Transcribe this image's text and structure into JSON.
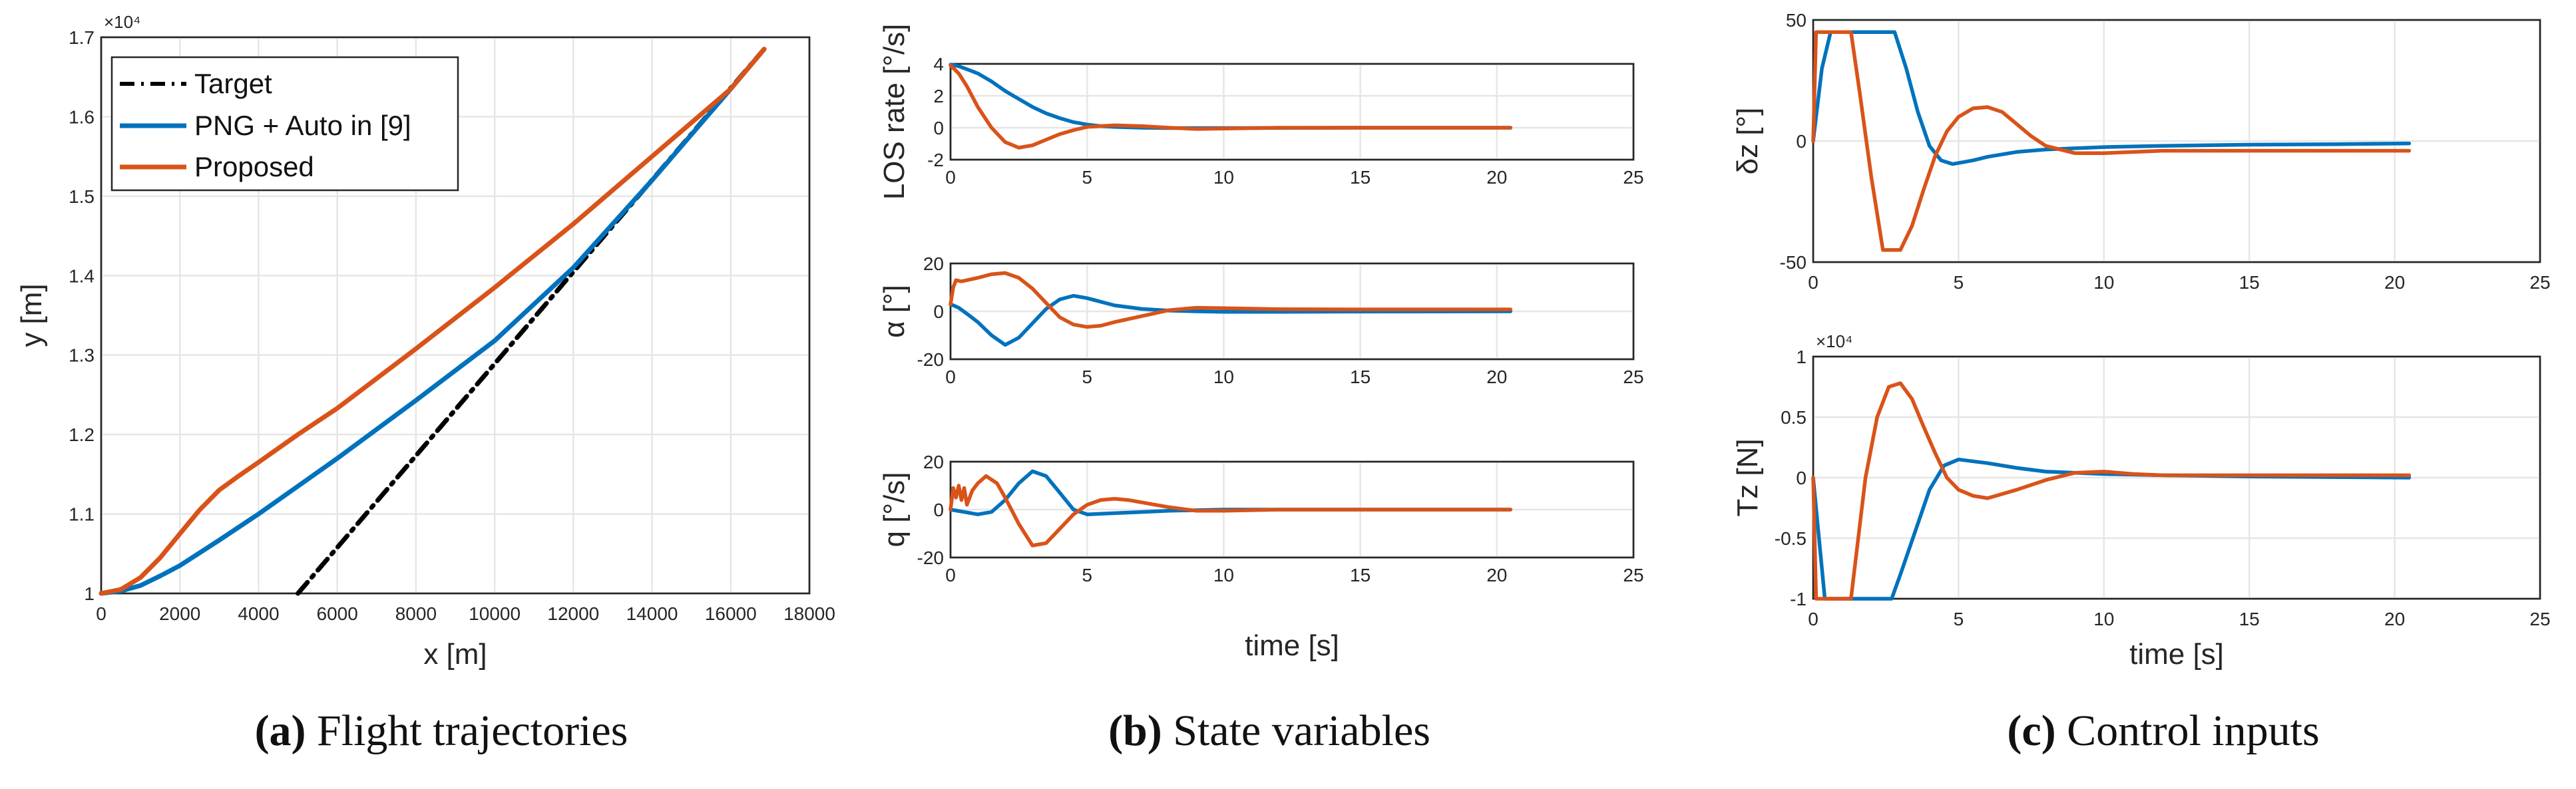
{
  "colors": {
    "blue": "#0072bd",
    "orange": "#d95319",
    "black": "#000000"
  },
  "captions": {
    "a": {
      "letter": "(a)",
      "text": " Flight trajectories"
    },
    "b": {
      "letter": "(b)",
      "text": " State variables"
    },
    "c": {
      "letter": "(c)",
      "text": " Control inputs"
    }
  },
  "chart_data": [
    {
      "id": "traj",
      "type": "line",
      "xlabel": "x [m]",
      "ylabel": "y [m]",
      "exponent": "×10⁴",
      "xlim": [
        0,
        18000
      ],
      "ylim": [
        1.0,
        1.7
      ],
      "xticks": [
        0,
        2000,
        4000,
        6000,
        8000,
        10000,
        12000,
        14000,
        16000,
        18000
      ],
      "yticks": [
        1.0,
        1.1,
        1.2,
        1.3,
        1.4,
        1.5,
        1.6,
        1.7
      ],
      "ytick_labels": [
        "1",
        "1.1",
        "1.2",
        "1.3",
        "1.4",
        "1.5",
        "1.6",
        "1.7"
      ],
      "legend": [
        "Target",
        "PNG + Auto in [9]",
        "Proposed"
      ],
      "series": [
        {
          "name": "Target",
          "color": "black",
          "style": "dashdot",
          "x": [
            5000,
            16850
          ],
          "y": [
            1.0,
            1.685
          ]
        },
        {
          "name": "PNG + Auto in [9]",
          "color": "blue",
          "x": [
            0,
            500,
            1000,
            1500,
            2000,
            3000,
            4000,
            5000,
            6000,
            8000,
            10000,
            12000,
            14000,
            16000,
            16850
          ],
          "y": [
            1.0,
            1.003,
            1.01,
            1.022,
            1.035,
            1.067,
            1.1,
            1.135,
            1.17,
            1.243,
            1.318,
            1.41,
            1.52,
            1.635,
            1.685
          ]
        },
        {
          "name": "Proposed",
          "color": "orange",
          "x": [
            0,
            500,
            1000,
            1500,
            2000,
            2500,
            3000,
            3500,
            4000,
            5000,
            6000,
            8000,
            10000,
            12000,
            14000,
            16000,
            16850
          ],
          "y": [
            1.0,
            1.005,
            1.02,
            1.045,
            1.075,
            1.105,
            1.13,
            1.148,
            1.165,
            1.2,
            1.233,
            1.308,
            1.385,
            1.465,
            1.55,
            1.635,
            1.685
          ]
        }
      ]
    },
    {
      "id": "los",
      "type": "line",
      "xlabel": "",
      "ylabel": "LOS rate [°/s]",
      "xlim": [
        0,
        25
      ],
      "ylim": [
        -2,
        4
      ],
      "xticks": [
        0,
        5,
        10,
        15,
        20,
        25
      ],
      "yticks": [
        -2,
        0,
        2,
        4
      ],
      "series": [
        {
          "name": "PNG + Auto in [9]",
          "color": "blue",
          "x": [
            0,
            0.3,
            0.7,
            1,
            1.5,
            2,
            2.5,
            3,
            3.5,
            4,
            4.5,
            5,
            5.5,
            6,
            7,
            8,
            10,
            15,
            20.5
          ],
          "y": [
            3.95,
            3.85,
            3.6,
            3.4,
            2.9,
            2.3,
            1.8,
            1.3,
            0.9,
            0.6,
            0.35,
            0.2,
            0.1,
            0.05,
            0.0,
            -0.02,
            -0.02,
            0,
            0
          ]
        },
        {
          "name": "Proposed",
          "color": "orange",
          "x": [
            0,
            0.3,
            0.6,
            1,
            1.5,
            2,
            2.5,
            3,
            3.5,
            4,
            4.5,
            5,
            6,
            7,
            8,
            9,
            10,
            12,
            15,
            20.5
          ],
          "y": [
            3.9,
            3.4,
            2.6,
            1.3,
            0.0,
            -0.9,
            -1.25,
            -1.1,
            -0.75,
            -0.4,
            -0.15,
            0.05,
            0.15,
            0.1,
            0.0,
            -0.08,
            -0.05,
            0,
            0,
            0
          ]
        }
      ]
    },
    {
      "id": "alpha",
      "type": "line",
      "xlabel": "",
      "ylabel": "α [°]",
      "xlim": [
        0,
        25
      ],
      "ylim": [
        -20,
        20
      ],
      "xticks": [
        0,
        5,
        10,
        15,
        20,
        25
      ],
      "yticks": [
        -20,
        0,
        20
      ],
      "series": [
        {
          "name": "PNG + Auto in [9]",
          "color": "blue",
          "x": [
            0,
            0.3,
            0.6,
            1,
            1.5,
            2,
            2.5,
            3,
            3.5,
            4,
            4.5,
            5,
            5.5,
            6,
            7,
            8,
            9,
            10,
            12,
            15,
            20.5
          ],
          "y": [
            3,
            1.5,
            -1,
            -4.5,
            -10,
            -14,
            -11,
            -5,
            1,
            5,
            6.5,
            5.5,
            4,
            2.5,
            1,
            0.3,
            0,
            -0.2,
            -0.2,
            -0.1,
            0
          ]
        },
        {
          "name": "Proposed",
          "color": "orange",
          "x": [
            0,
            0.1,
            0.2,
            0.4,
            0.6,
            1,
            1.5,
            2,
            2.5,
            3,
            3.5,
            4,
            4.5,
            5,
            5.5,
            6,
            7,
            8,
            9,
            10,
            12,
            15,
            20.5
          ],
          "y": [
            3,
            10,
            13,
            12.5,
            13,
            14,
            15.5,
            16,
            14,
            9.5,
            3.5,
            -2.5,
            -5.5,
            -6.5,
            -6,
            -4.5,
            -2,
            0.5,
            1.5,
            1.3,
            0.9,
            0.8,
            0.8
          ]
        }
      ]
    },
    {
      "id": "q",
      "type": "line",
      "xlabel": "time [s]",
      "ylabel": "q [°/s]",
      "xlim": [
        0,
        25
      ],
      "ylim": [
        -20,
        20
      ],
      "xticks": [
        0,
        5,
        10,
        15,
        20,
        25
      ],
      "yticks": [
        -20,
        0,
        20
      ],
      "series": [
        {
          "name": "PNG + Auto in [9]",
          "color": "blue",
          "x": [
            0,
            0.5,
            1,
            1.5,
            2,
            2.5,
            3,
            3.5,
            4,
            4.5,
            5,
            6,
            7,
            8,
            10,
            15,
            20.5
          ],
          "y": [
            0,
            -1,
            -2,
            -1,
            4,
            11,
            16,
            14,
            7,
            0,
            -2,
            -1.5,
            -1,
            -0.5,
            0,
            0,
            0
          ]
        },
        {
          "name": "Proposed",
          "color": "orange",
          "x": [
            0,
            0.1,
            0.2,
            0.3,
            0.4,
            0.5,
            0.6,
            0.8,
            1,
            1.3,
            1.7,
            2,
            2.5,
            3,
            3.5,
            4,
            4.5,
            5,
            5.5,
            6,
            6.5,
            7,
            8,
            9,
            10,
            12,
            15,
            20.5
          ],
          "y": [
            0,
            9,
            5,
            10,
            4,
            9,
            2,
            8,
            11,
            14,
            11,
            5,
            -6,
            -15,
            -14,
            -8,
            -2,
            2,
            4,
            4.5,
            4,
            3,
            1,
            -0.5,
            -0.5,
            0,
            0,
            0
          ]
        }
      ]
    },
    {
      "id": "delta",
      "type": "line",
      "xlabel": "",
      "ylabel": "δz [°]",
      "xlim": [
        0,
        25
      ],
      "ylim": [
        -50,
        50
      ],
      "xticks": [
        0,
        5,
        10,
        15,
        20,
        25
      ],
      "yticks": [
        -50,
        0,
        50
      ],
      "series": [
        {
          "name": "PNG + Auto in [9]",
          "color": "blue",
          "x": [
            0,
            0.3,
            0.6,
            1,
            2,
            2.8,
            3.2,
            3.6,
            4,
            4.4,
            4.8,
            5.5,
            6,
            7,
            8,
            9,
            10,
            12,
            15,
            18,
            20.5
          ],
          "y": [
            0,
            30,
            45,
            45,
            45,
            45,
            30,
            12,
            -2,
            -8,
            -9.5,
            -8,
            -6.5,
            -4.5,
            -3.5,
            -3,
            -2.5,
            -2,
            -1.5,
            -1.3,
            -1
          ]
        },
        {
          "name": "Proposed",
          "color": "orange",
          "x": [
            0,
            0.1,
            0.3,
            1,
            1.3,
            1.6,
            2,
            2.4,
            3,
            3.4,
            3.8,
            4.2,
            4.6,
            5,
            5.5,
            6,
            6.5,
            7,
            7.5,
            8,
            9,
            10,
            12,
            15,
            18,
            20.5
          ],
          "y": [
            0,
            45,
            45,
            45,
            45,
            20,
            -15,
            -45,
            -45,
            -35,
            -20,
            -6,
            4,
            10,
            13.5,
            14,
            12,
            7,
            2,
            -2,
            -5,
            -5,
            -4,
            -4,
            -4,
            -4
          ]
        }
      ]
    },
    {
      "id": "tz",
      "type": "line",
      "xlabel": "time [s]",
      "ylabel": "Tz [N]",
      "exponent": "×10⁴",
      "xlim": [
        0,
        25
      ],
      "ylim": [
        -1,
        1
      ],
      "xticks": [
        0,
        5,
        10,
        15,
        20,
        25
      ],
      "yticks": [
        -1,
        -0.5,
        0,
        0.5,
        1
      ],
      "ytick_labels": [
        "-1",
        "-0.5",
        "0",
        "0.5",
        "1"
      ],
      "series": [
        {
          "name": "PNG + Auto in [9]",
          "color": "blue",
          "x": [
            0,
            0.2,
            0.4,
            0.6,
            1,
            2,
            2.7,
            3,
            3.5,
            4,
            4.5,
            5,
            6,
            7,
            8,
            10,
            12,
            15,
            20.5
          ],
          "y": [
            0,
            -0.5,
            -1.0,
            -1.0,
            -1.0,
            -1.0,
            -1.0,
            -0.8,
            -0.45,
            -0.1,
            0.1,
            0.15,
            0.12,
            0.08,
            0.05,
            0.03,
            0.02,
            0.01,
            0.0
          ]
        },
        {
          "name": "Proposed",
          "color": "orange",
          "x": [
            0,
            0.1,
            0.4,
            1.3,
            1.5,
            1.8,
            2.2,
            2.6,
            3,
            3.4,
            3.8,
            4.2,
            4.6,
            5,
            5.5,
            6,
            7,
            8,
            9,
            10,
            11,
            12,
            15,
            20.5
          ],
          "y": [
            0,
            -1.0,
            -1.0,
            -1.0,
            -0.6,
            0.0,
            0.5,
            0.75,
            0.78,
            0.65,
            0.42,
            0.2,
            0.0,
            -0.1,
            -0.15,
            -0.17,
            -0.1,
            -0.02,
            0.04,
            0.05,
            0.03,
            0.02,
            0.02,
            0.02
          ]
        }
      ]
    }
  ]
}
